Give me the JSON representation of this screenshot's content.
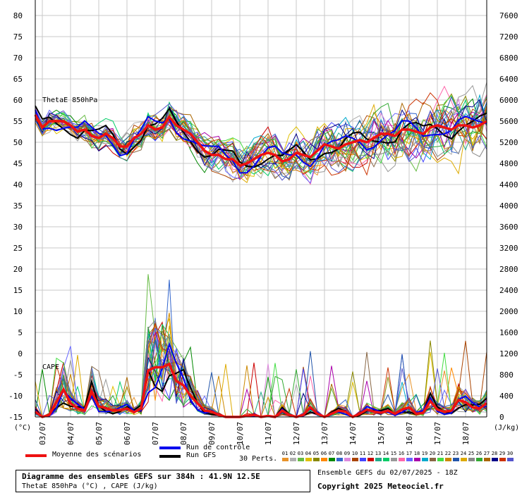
{
  "chart_data": {
    "type": "line",
    "title": "Diagramme des ensembles GEFS sur 384h : 41.9N 12.5E",
    "subtitle": "ThetaE 850hPa (°C) , CAPE (J/kg)",
    "left_axis": {
      "unit": "(°C)",
      "ticks": [
        -15,
        -10,
        -5,
        0,
        5,
        10,
        15,
        20,
        25,
        30,
        35,
        40,
        45,
        50,
        55,
        60,
        65,
        70,
        75,
        80
      ],
      "ylim": [
        -15,
        80
      ]
    },
    "right_axis": {
      "unit": "(J/kg)",
      "ticks": [
        0,
        400,
        800,
        1200,
        1600,
        2000,
        2400,
        2800,
        3200,
        3600,
        4000,
        4400,
        4800,
        5200,
        5600,
        6000,
        6400,
        6800,
        7200,
        7600
      ],
      "ylim": [
        0,
        7600
      ]
    },
    "x_dates": [
      "03/07",
      "04/07",
      "05/07",
      "06/07",
      "07/07",
      "08/07",
      "09/07",
      "10/07",
      "11/07",
      "12/07",
      "13/07",
      "14/07",
      "15/07",
      "16/07",
      "17/07",
      "18/07"
    ],
    "panel_labels": {
      "theta": "ThetaE 850hPa",
      "cape": "CAPE"
    },
    "time_hours": [
      0,
      6,
      12,
      18,
      24,
      30,
      36,
      42,
      48,
      54,
      60,
      66,
      72,
      78,
      84,
      90,
      96,
      102,
      108,
      114,
      120,
      126,
      132,
      138,
      144,
      150,
      156,
      162,
      168,
      174,
      180,
      186,
      192,
      198,
      204,
      210,
      216,
      222,
      228,
      234,
      240,
      246,
      252,
      258,
      264,
      270,
      276,
      282,
      288,
      294,
      300,
      306,
      312,
      318,
      324,
      330,
      336,
      342,
      348,
      354,
      360,
      366,
      372,
      378,
      384
    ],
    "theta_mean": [
      56.5,
      53.5,
      55,
      55,
      55,
      54,
      52.5,
      53,
      51.5,
      51,
      52,
      51,
      49,
      49,
      51,
      52,
      54,
      53,
      53.5,
      56,
      54,
      53,
      52,
      50,
      48,
      47,
      47,
      46,
      46,
      44.5,
      45,
      46,
      47,
      47.5,
      47,
      45.5,
      46,
      47.5,
      47,
      46.5,
      48,
      49.5,
      49,
      48.5,
      49.5,
      50,
      50.5,
      50,
      51,
      52,
      52,
      51.5,
      53,
      53,
      52.5,
      52,
      53.5,
      54,
      53.5,
      53,
      54,
      54,
      53.5,
      54,
      55
    ],
    "cape_mean": [
      100,
      0,
      40,
      280,
      520,
      260,
      160,
      120,
      480,
      200,
      170,
      120,
      130,
      160,
      90,
      160,
      880,
      940,
      940,
      1000,
      680,
      600,
      400,
      260,
      120,
      100,
      40,
      0,
      0,
      0,
      20,
      40,
      0,
      20,
      0,
      120,
      40,
      0,
      40,
      180,
      60,
      0,
      60,
      120,
      100,
      0,
      60,
      140,
      100,
      80,
      120,
      60,
      140,
      180,
      60,
      80,
      300,
      140,
      100,
      120,
      320,
      280,
      180,
      160,
      260
    ],
    "series": [
      {
        "name": "Moyenne des scénarios",
        "color": "#ee1111"
      },
      {
        "name": "Run de contrôle",
        "color": "#0000ee"
      },
      {
        "name": "Run GFS",
        "color": "#000000"
      }
    ],
    "perturbations": {
      "count_label": "30 Perts.",
      "numbers": [
        "01",
        "02",
        "03",
        "04",
        "05",
        "06",
        "07",
        "08",
        "09",
        "10",
        "11",
        "12",
        "13",
        "14",
        "15",
        "16",
        "17",
        "18",
        "19",
        "20",
        "21",
        "22",
        "23",
        "24",
        "25",
        "26",
        "27",
        "28",
        "29",
        "30"
      ],
      "colors": [
        "#e8932a",
        "#b0b0b0",
        "#66bb44",
        "#e0c000",
        "#888800",
        "#ff8800",
        "#008800",
        "#3366cc",
        "#dd88dd",
        "#aa4400",
        "#4444ff",
        "#cc0000",
        "#22aa88",
        "#00cc66",
        "#999999",
        "#ff66aa",
        "#6666ff",
        "#aa00aa",
        "#00aacc",
        "#886644",
        "#44dd44",
        "#cc8800",
        "#2255aa",
        "#ddaa00",
        "#888888",
        "#33aa33",
        "#aa6600",
        "#000088",
        "#cc3300",
        "#5555cc"
      ]
    }
  },
  "footer": {
    "title": "Diagramme des ensembles GEFS sur 384h : 41.9N 12.5E",
    "subtitle": "ThetaE 850hPa (°C) , CAPE (J/kg)",
    "ensemble_info": "Ensemble GEFS du 02/07/2025 - 18Z",
    "copyright": "Copyright 2025 Meteociel.fr"
  },
  "legend": {
    "mean": "Moyenne des scénarios",
    "control": "Run de contrôle",
    "gfs": "Run GFS",
    "perts": "30 Perts."
  }
}
